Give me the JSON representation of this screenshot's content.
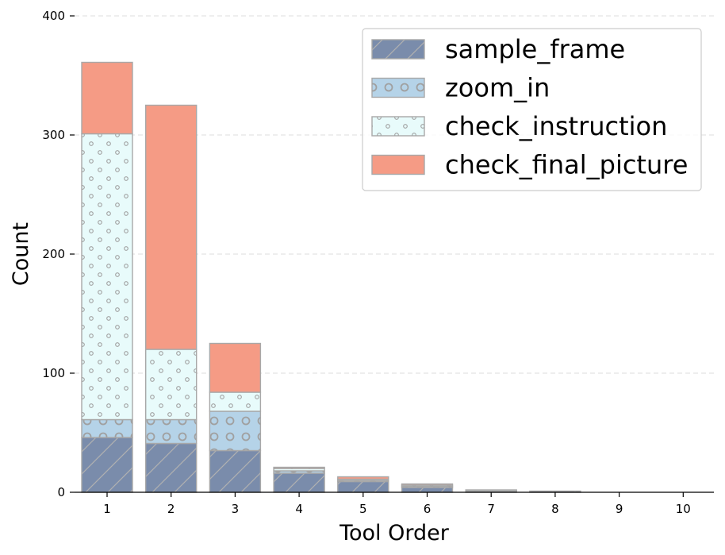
{
  "chart_data": {
    "type": "bar",
    "stacked": true,
    "categories": [
      "1",
      "2",
      "3",
      "4",
      "5",
      "6",
      "7",
      "8",
      "9",
      "10"
    ],
    "series": [
      {
        "name": "sample_frame",
        "values": [
          46,
          41,
          35,
          16,
          9,
          4,
          1,
          1,
          0,
          0
        ],
        "color": "#7a8cab",
        "hatch": "diagonal"
      },
      {
        "name": "zoom_in",
        "values": [
          15,
          20,
          33,
          2,
          1,
          1,
          0,
          0,
          0,
          0
        ],
        "color": "#b5d3e8",
        "hatch": "rings"
      },
      {
        "name": "check_instruction",
        "values": [
          240,
          59,
          16,
          2,
          1,
          1,
          1,
          0,
          0,
          0
        ],
        "color": "#e8fbfb",
        "hatch": "dots"
      },
      {
        "name": "check_final_picture",
        "values": [
          60,
          205,
          41,
          1,
          2,
          1,
          0,
          0,
          0,
          0
        ],
        "color": "#f59b85",
        "hatch": "none"
      }
    ],
    "xlabel": "Tool Order",
    "ylabel": "Count",
    "ylim": [
      0,
      400
    ],
    "yticks": [
      0,
      100,
      200,
      300,
      400
    ],
    "grid": "y-dashed",
    "legend": "top-right"
  }
}
